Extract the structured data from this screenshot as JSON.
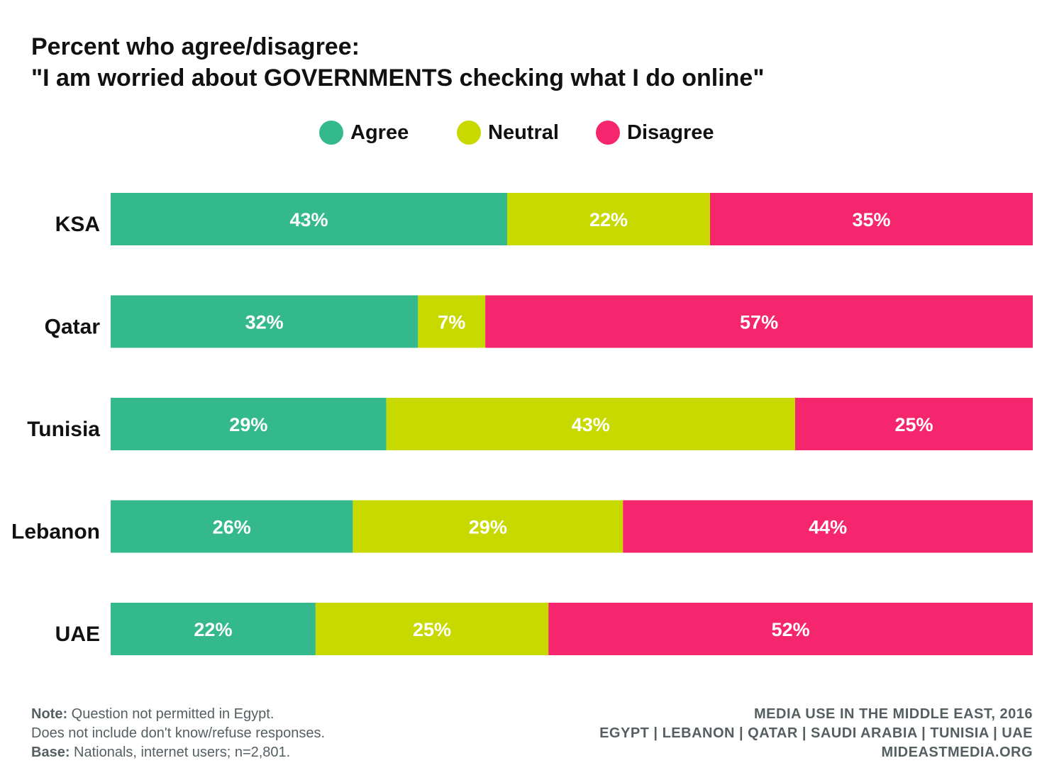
{
  "title_line1": "Percent who agree/disagree:",
  "title_line2": "\"I am worried about GOVERNMENTS checking what I do online\"",
  "legend": [
    {
      "label": "Agree",
      "color": "#34b98c"
    },
    {
      "label": "Neutral",
      "color": "#c8d900"
    },
    {
      "label": "Disagree",
      "color": "#f5266d"
    }
  ],
  "chart_data": {
    "type": "bar",
    "orientation": "horizontal",
    "stacked": true,
    "categories": [
      "KSA",
      "Qatar",
      "Tunisia",
      "Lebanon",
      "UAE"
    ],
    "series": [
      {
        "name": "Agree",
        "color": "#34b98c",
        "values": [
          43,
          32,
          29,
          26,
          22
        ]
      },
      {
        "name": "Neutral",
        "color": "#c8d900",
        "values": [
          22,
          7,
          43,
          29,
          25
        ]
      },
      {
        "name": "Disagree",
        "color": "#f5266d",
        "values": [
          35,
          57,
          25,
          44,
          52
        ]
      }
    ],
    "value_suffix": "%",
    "legend_position": "top-center",
    "grid": false
  },
  "notes": {
    "note_label": "Note:",
    "note_text": "Question not permitted in Egypt.",
    "note_line2": "Does not include don't know/refuse responses.",
    "base_label": "Base:",
    "base_text": "Nationals, internet users; n=2,801."
  },
  "source": {
    "line1": "MEDIA USE IN THE MIDDLE EAST, 2016",
    "line2": "EGYPT | LEBANON | QATAR | SAUDI ARABIA | TUNISIA | UAE",
    "line3": "MIDEASTMEDIA.ORG"
  }
}
